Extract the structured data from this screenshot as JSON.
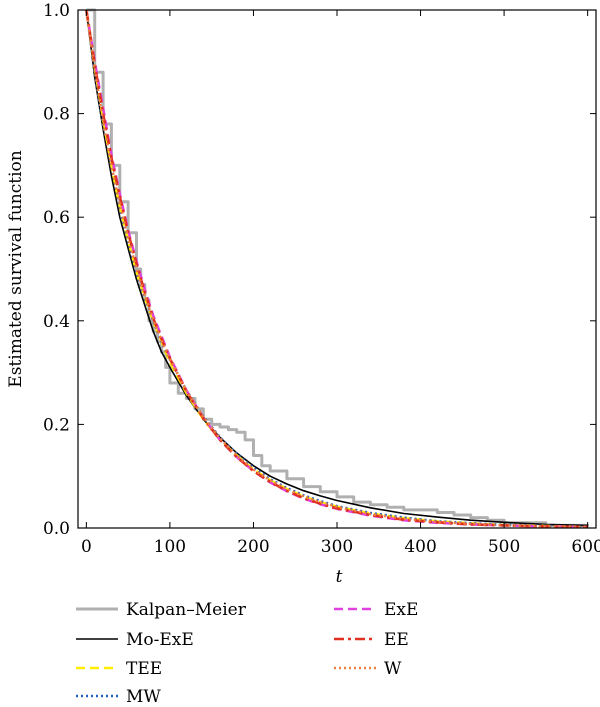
{
  "chart_data": {
    "type": "line",
    "title": "",
    "xlabel": "t",
    "ylabel": "Estimated survival function",
    "xlim": [
      -10,
      610
    ],
    "ylim": [
      0,
      1.0
    ],
    "xticks": [
      "0",
      "100",
      "200",
      "300",
      "400",
      "500",
      "600"
    ],
    "yticks": [
      "0.0",
      "0.2",
      "0.4",
      "0.6",
      "0.8",
      "1.0"
    ],
    "grid": false,
    "legend_position": "below",
    "series": [
      {
        "name": "Kalpan–Meier",
        "color": "#b0b0b0",
        "style": "step",
        "x": [
          0,
          10,
          20,
          30,
          40,
          50,
          60,
          65,
          70,
          75,
          80,
          85,
          90,
          95,
          100,
          110,
          120,
          130,
          140,
          150,
          160,
          170,
          180,
          190,
          200,
          210,
          220,
          240,
          260,
          280,
          300,
          320,
          340,
          360,
          380,
          400,
          420,
          440,
          460,
          480,
          500,
          550,
          600
        ],
        "y": [
          1.0,
          0.88,
          0.78,
          0.7,
          0.63,
          0.57,
          0.5,
          0.47,
          0.44,
          0.4,
          0.38,
          0.36,
          0.34,
          0.31,
          0.28,
          0.26,
          0.25,
          0.23,
          0.21,
          0.2,
          0.195,
          0.19,
          0.185,
          0.17,
          0.14,
          0.12,
          0.11,
          0.095,
          0.08,
          0.07,
          0.06,
          0.05,
          0.045,
          0.04,
          0.035,
          0.035,
          0.03,
          0.025,
          0.02,
          0.015,
          0.01,
          0.005,
          0.003
        ]
      },
      {
        "name": "Mo-ExE",
        "color": "#000000",
        "style": "solid",
        "x": [
          0,
          10,
          20,
          30,
          40,
          50,
          60,
          70,
          80,
          90,
          100,
          120,
          140,
          160,
          180,
          200,
          220,
          240,
          260,
          280,
          300,
          340,
          380,
          420,
          460,
          500,
          550,
          600
        ],
        "y": [
          1.0,
          0.87,
          0.77,
          0.68,
          0.6,
          0.54,
          0.48,
          0.43,
          0.38,
          0.34,
          0.31,
          0.255,
          0.21,
          0.175,
          0.145,
          0.12,
          0.1,
          0.085,
          0.072,
          0.062,
          0.053,
          0.039,
          0.028,
          0.021,
          0.015,
          0.011,
          0.007,
          0.005
        ]
      },
      {
        "name": "TEE",
        "color": "#ffee00",
        "style": "dashed",
        "x": [
          0,
          10,
          20,
          30,
          40,
          50,
          60,
          70,
          80,
          90,
          100,
          120,
          140,
          160,
          180,
          200,
          220,
          240,
          260,
          280,
          300,
          340,
          380,
          420,
          460,
          500,
          550,
          600
        ],
        "y": [
          1.0,
          0.89,
          0.79,
          0.7,
          0.62,
          0.555,
          0.495,
          0.445,
          0.4,
          0.36,
          0.32,
          0.26,
          0.21,
          0.17,
          0.14,
          0.113,
          0.092,
          0.075,
          0.061,
          0.05,
          0.041,
          0.028,
          0.019,
          0.013,
          0.009,
          0.006,
          0.004,
          0.002
        ]
      },
      {
        "name": "MW",
        "color": "#2060c0",
        "style": "dotted",
        "x": [
          0,
          10,
          20,
          30,
          40,
          50,
          60,
          70,
          80,
          90,
          100,
          120,
          140,
          160,
          180,
          200,
          220,
          240,
          260,
          280,
          300,
          340,
          380,
          420,
          460,
          500,
          550,
          600
        ],
        "y": [
          1.0,
          0.88,
          0.78,
          0.7,
          0.62,
          0.555,
          0.495,
          0.445,
          0.4,
          0.36,
          0.325,
          0.265,
          0.215,
          0.175,
          0.143,
          0.116,
          0.094,
          0.077,
          0.063,
          0.052,
          0.042,
          0.029,
          0.02,
          0.013,
          0.009,
          0.006,
          0.004,
          0.002
        ]
      },
      {
        "name": "ExE",
        "color": "#e040e0",
        "style": "dashed",
        "x": [
          0,
          10,
          20,
          30,
          40,
          50,
          60,
          70,
          80,
          90,
          100,
          120,
          140,
          160,
          180,
          200,
          220,
          240,
          260,
          280,
          300,
          340,
          380,
          420,
          460,
          500,
          550,
          600
        ],
        "y": [
          1.0,
          0.9,
          0.81,
          0.72,
          0.645,
          0.575,
          0.515,
          0.46,
          0.41,
          0.37,
          0.33,
          0.265,
          0.213,
          0.17,
          0.137,
          0.11,
          0.088,
          0.071,
          0.057,
          0.046,
          0.037,
          0.024,
          0.015,
          0.01,
          0.007,
          0.005,
          0.003,
          0.002
        ]
      },
      {
        "name": "EE",
        "color": "#e03020",
        "style": "dashdot",
        "x": [
          0,
          10,
          20,
          30,
          40,
          50,
          60,
          70,
          80,
          90,
          100,
          120,
          140,
          160,
          180,
          200,
          220,
          240,
          260,
          280,
          300,
          340,
          380,
          420,
          460,
          500,
          550,
          600
        ],
        "y": [
          1.0,
          0.895,
          0.8,
          0.715,
          0.64,
          0.57,
          0.51,
          0.455,
          0.405,
          0.365,
          0.327,
          0.263,
          0.212,
          0.17,
          0.137,
          0.11,
          0.089,
          0.072,
          0.058,
          0.047,
          0.038,
          0.025,
          0.016,
          0.011,
          0.007,
          0.005,
          0.003,
          0.002
        ]
      },
      {
        "name": "W",
        "color": "#f08040",
        "style": "dotted",
        "x": [
          0,
          10,
          20,
          30,
          40,
          50,
          60,
          70,
          80,
          90,
          100,
          120,
          140,
          160,
          180,
          200,
          220,
          240,
          260,
          280,
          300,
          340,
          380,
          420,
          460,
          500,
          550,
          600
        ],
        "y": [
          1.0,
          0.885,
          0.785,
          0.7,
          0.625,
          0.56,
          0.5,
          0.448,
          0.402,
          0.362,
          0.326,
          0.264,
          0.214,
          0.173,
          0.14,
          0.113,
          0.092,
          0.075,
          0.061,
          0.05,
          0.041,
          0.027,
          0.018,
          0.012,
          0.008,
          0.005,
          0.003,
          0.002
        ]
      }
    ]
  }
}
